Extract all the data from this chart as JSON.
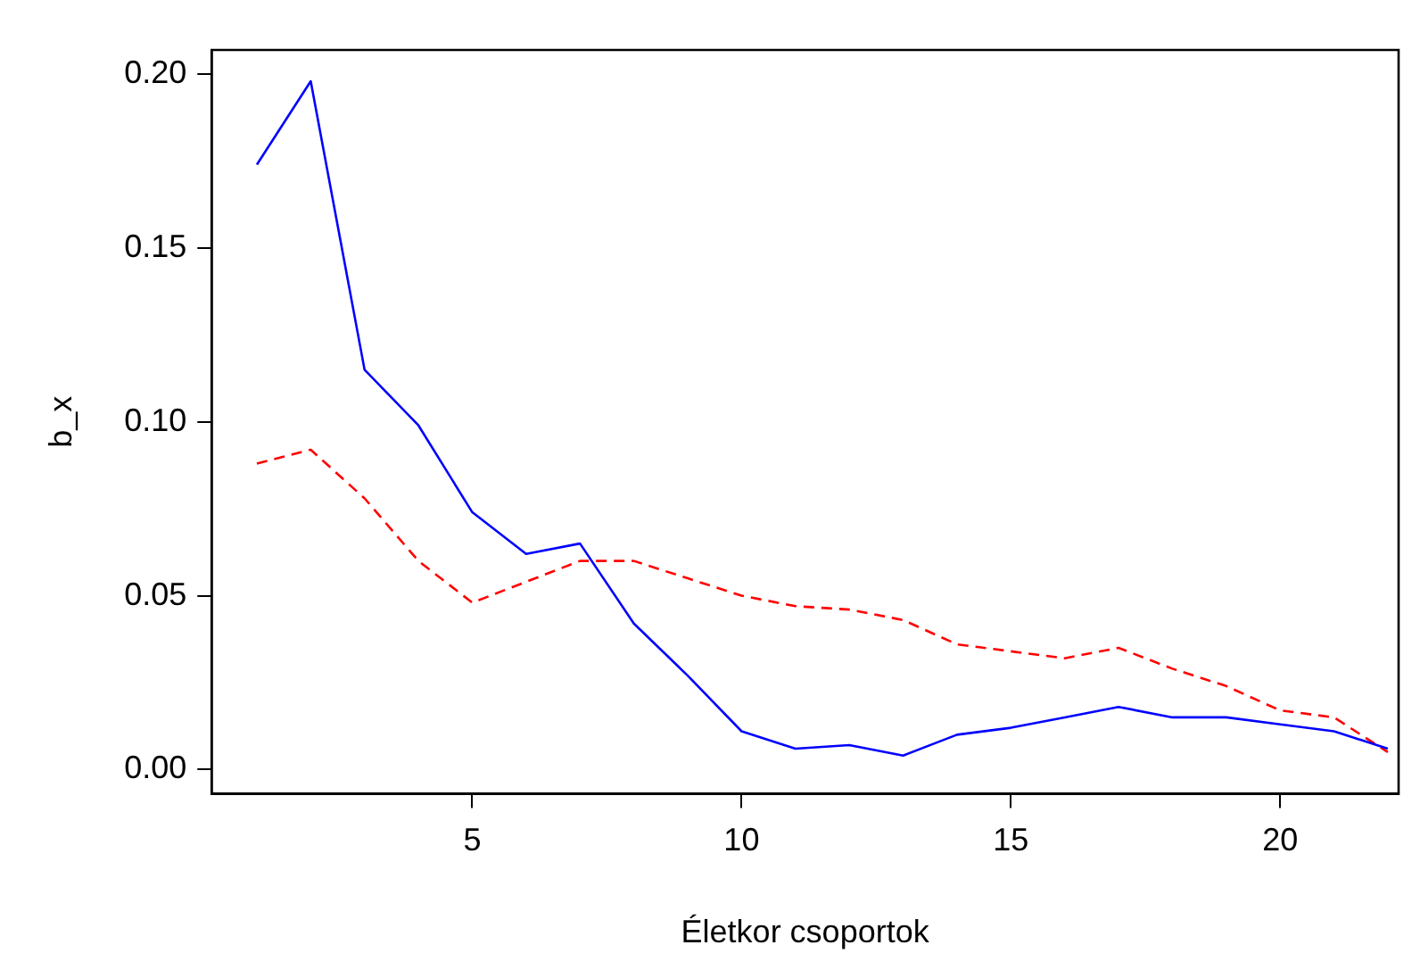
{
  "chart_data": {
    "type": "line",
    "xlabel": "Életkor csoportok",
    "ylabel": "b_x",
    "x": [
      1,
      2,
      3,
      4,
      5,
      6,
      7,
      8,
      9,
      10,
      11,
      12,
      13,
      14,
      15,
      16,
      17,
      18,
      19,
      20,
      21,
      22
    ],
    "series": [
      {
        "color": "#0000ff",
        "line_style": "solid",
        "values": [
          0.174,
          0.198,
          0.115,
          0.099,
          0.074,
          0.062,
          0.065,
          0.042,
          0.027,
          0.011,
          0.006,
          0.007,
          0.004,
          0.01,
          0.012,
          0.015,
          0.018,
          0.015,
          0.015,
          0.013,
          0.011,
          0.006
        ]
      },
      {
        "color": "#ff0000",
        "line_style": "dashed",
        "values": [
          0.088,
          0.092,
          0.078,
          0.06,
          0.048,
          0.054,
          0.06,
          0.06,
          0.055,
          0.05,
          0.047,
          0.046,
          0.043,
          0.036,
          0.034,
          0.032,
          0.035,
          0.029,
          0.024,
          0.017,
          0.015,
          0.005
        ]
      }
    ],
    "xlim": [
      0.16,
      22.2
    ],
    "xticks": [
      5,
      10,
      15,
      20
    ],
    "ylim": [
      -0.007,
      0.207
    ],
    "yticks": [
      {
        "value": 0,
        "label": "0.00"
      },
      0.05,
      {
        "value": 0.1,
        "label": "0.10"
      },
      0.15,
      {
        "value": 0.2,
        "label": "0.20"
      }
    ],
    "grid": false,
    "legend": false,
    "marker": "none"
  }
}
